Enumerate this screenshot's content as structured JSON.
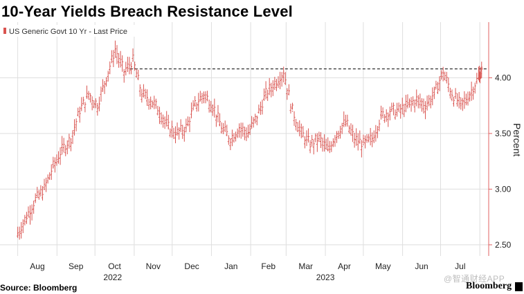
{
  "title": "10-Year Yields Breach Resistance Level",
  "source": "Source: Bloomberg",
  "brand": "Bloomberg",
  "watermark": "@智通财经APP",
  "colors": {
    "series": "#d9534f",
    "axis": "#e06060",
    "grid": "#dedede",
    "resistance": "#000000"
  },
  "chart_data": {
    "type": "line",
    "legend": "US Generic Govt 10 Yr - Last Price",
    "legend_placement": "top-left",
    "ylabel": "Percent",
    "ylim": [
      2.4,
      4.5
    ],
    "yticks": [
      2.5,
      3.0,
      3.5,
      4.0
    ],
    "ytick_labels": [
      "2.50",
      "3.00",
      "3.50",
      "4.00"
    ],
    "x_tick_labels": [
      "Aug",
      "Sep",
      "Oct",
      "Nov",
      "Dec",
      "Jan",
      "Feb",
      "Mar",
      "Apr",
      "May",
      "Jun",
      "Jul"
    ],
    "year_labels": [
      "2022",
      "2023"
    ],
    "grid": true,
    "resistance_level": 4.08,
    "series": [
      {
        "name": "US Generic Govt 10 Yr - Last Price",
        "x": [
          "2022-08-01",
          "2022-08-08",
          "2022-08-15",
          "2022-08-22",
          "2022-08-29",
          "2022-09-05",
          "2022-09-12",
          "2022-09-19",
          "2022-09-26",
          "2022-10-03",
          "2022-10-10",
          "2022-10-17",
          "2022-10-24",
          "2022-10-31",
          "2022-11-07",
          "2022-11-14",
          "2022-11-21",
          "2022-11-28",
          "2022-12-05",
          "2022-12-12",
          "2022-12-19",
          "2022-12-26",
          "2023-01-02",
          "2023-01-09",
          "2023-01-16",
          "2023-01-23",
          "2023-01-30",
          "2023-02-06",
          "2023-02-13",
          "2023-02-20",
          "2023-02-27",
          "2023-03-06",
          "2023-03-13",
          "2023-03-20",
          "2023-03-27",
          "2023-04-03",
          "2023-04-10",
          "2023-04-17",
          "2023-04-24",
          "2023-05-01",
          "2023-05-08",
          "2023-05-15",
          "2023-05-22",
          "2023-05-29",
          "2023-06-05",
          "2023-06-12",
          "2023-06-19",
          "2023-06-26",
          "2023-07-03",
          "2023-07-10",
          "2023-07-17",
          "2023-07-24",
          "2023-07-31",
          "2023-08-03"
        ],
        "values": [
          2.6,
          2.75,
          2.9,
          3.0,
          3.2,
          3.35,
          3.45,
          3.7,
          3.85,
          3.75,
          4.0,
          4.25,
          4.05,
          4.15,
          3.85,
          3.8,
          3.7,
          3.55,
          3.5,
          3.55,
          3.75,
          3.85,
          3.75,
          3.55,
          3.45,
          3.55,
          3.5,
          3.65,
          3.85,
          3.95,
          4.05,
          3.7,
          3.5,
          3.4,
          3.45,
          3.35,
          3.5,
          3.6,
          3.45,
          3.4,
          3.45,
          3.65,
          3.7,
          3.7,
          3.75,
          3.8,
          3.75,
          3.85,
          4.05,
          3.85,
          3.75,
          3.85,
          4.0,
          4.08
        ]
      }
    ]
  }
}
